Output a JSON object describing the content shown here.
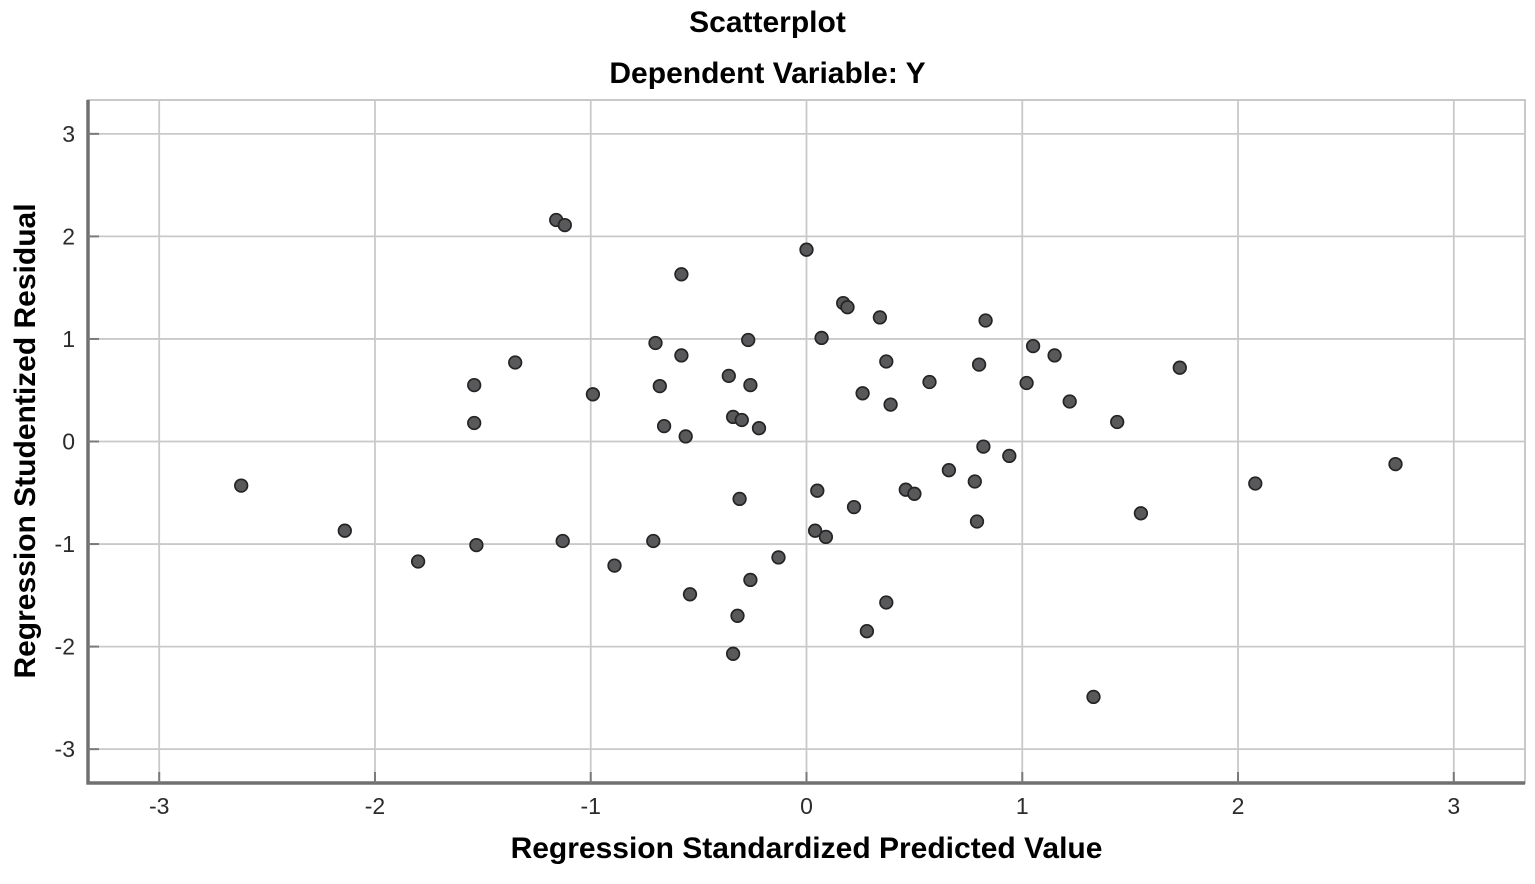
{
  "chart_data": {
    "type": "scatter",
    "title": "Scatterplot",
    "subtitle": "Dependent Variable: Y",
    "xlabel": "Regression Standardized Predicted Value",
    "ylabel": "Regression Studentized Residual",
    "xlim": [
      -3.33,
      3.33
    ],
    "ylim": [
      -3.33,
      3.33
    ],
    "xticks": [
      -3,
      -2,
      -1,
      0,
      1,
      2,
      3
    ],
    "yticks": [
      -3,
      -2,
      -1,
      0,
      1,
      2,
      3
    ],
    "grid": true,
    "legend": "none",
    "grid_color": "#c9c9c9",
    "axis_color": "#707070",
    "tick_color": "#7a7a7a",
    "marker_fill": "#59595b",
    "marker_stroke": "#242424",
    "marker_radius": 6.3,
    "points": [
      [
        -1.16,
        2.16
      ],
      [
        -1.12,
        2.11
      ],
      [
        0.0,
        1.87
      ],
      [
        -0.58,
        1.63
      ],
      [
        0.17,
        1.35
      ],
      [
        0.19,
        1.31
      ],
      [
        0.34,
        1.21
      ],
      [
        0.83,
        1.18
      ],
      [
        0.07,
        1.01
      ],
      [
        -0.27,
        0.99
      ],
      [
        -0.7,
        0.96
      ],
      [
        1.05,
        0.93
      ],
      [
        -1.35,
        0.77
      ],
      [
        -0.58,
        0.84
      ],
      [
        1.15,
        0.84
      ],
      [
        0.37,
        0.78
      ],
      [
        0.8,
        0.75
      ],
      [
        1.73,
        0.72
      ],
      [
        -0.36,
        0.64
      ],
      [
        -0.26,
        0.55
      ],
      [
        -0.68,
        0.54
      ],
      [
        -1.54,
        0.55
      ],
      [
        0.57,
        0.58
      ],
      [
        1.02,
        0.57
      ],
      [
        -0.99,
        0.46
      ],
      [
        0.26,
        0.47
      ],
      [
        1.22,
        0.39
      ],
      [
        0.39,
        0.36
      ],
      [
        -0.34,
        0.24
      ],
      [
        -0.3,
        0.21
      ],
      [
        1.44,
        0.19
      ],
      [
        -1.54,
        0.18
      ],
      [
        -0.66,
        0.15
      ],
      [
        -0.22,
        0.13
      ],
      [
        -0.56,
        0.05
      ],
      [
        0.82,
        -0.05
      ],
      [
        0.94,
        -0.14
      ],
      [
        2.73,
        -0.22
      ],
      [
        0.66,
        -0.28
      ],
      [
        0.78,
        -0.39
      ],
      [
        2.08,
        -0.41
      ],
      [
        -2.62,
        -0.43
      ],
      [
        0.05,
        -0.48
      ],
      [
        0.46,
        -0.47
      ],
      [
        0.5,
        -0.51
      ],
      [
        -0.31,
        -0.56
      ],
      [
        0.22,
        -0.64
      ],
      [
        1.55,
        -0.7
      ],
      [
        0.79,
        -0.78
      ],
      [
        0.04,
        -0.87
      ],
      [
        0.09,
        -0.93
      ],
      [
        -2.14,
        -0.87
      ],
      [
        -1.13,
        -0.97
      ],
      [
        -0.71,
        -0.97
      ],
      [
        -1.53,
        -1.01
      ],
      [
        -0.13,
        -1.13
      ],
      [
        -1.8,
        -1.17
      ],
      [
        -0.89,
        -1.21
      ],
      [
        -0.26,
        -1.35
      ],
      [
        -0.54,
        -1.49
      ],
      [
        0.37,
        -1.57
      ],
      [
        -0.32,
        -1.7
      ],
      [
        0.28,
        -1.85
      ],
      [
        -0.34,
        -2.07
      ],
      [
        1.33,
        -2.49
      ]
    ]
  }
}
